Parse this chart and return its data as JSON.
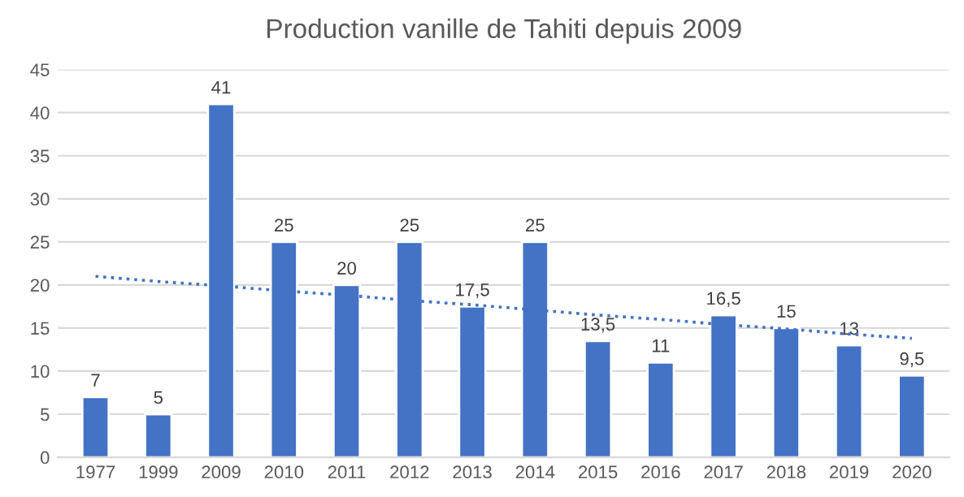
{
  "chart_data": {
    "type": "bar",
    "title": "Production vanille de Tahiti depuis 2009",
    "categories": [
      "1977",
      "1999",
      "2009",
      "2010",
      "2011",
      "2012",
      "2013",
      "2014",
      "2015",
      "2016",
      "2017",
      "2018",
      "2019",
      "2020"
    ],
    "series": [
      {
        "color": "#4472c4",
        "values": [
          7,
          5,
          41,
          25,
          20,
          25,
          17.5,
          25,
          13.5,
          11,
          16.5,
          15,
          13,
          9.5
        ],
        "value_labels": [
          "7",
          "5",
          "41",
          "25",
          "20",
          "25",
          "17,5",
          "25",
          "13,5",
          "11",
          "16,5",
          "15",
          "13",
          "9,5"
        ]
      },
      {
        "type": "line",
        "color": "#4472c4",
        "line_style": "dotted",
        "values": [
          21,
          20.4,
          19.9,
          19.3,
          18.8,
          18.2,
          17.7,
          17.1,
          16.5,
          16.0,
          15.4,
          14.9,
          14.3,
          13.8
        ]
      }
    ],
    "ylim": [
      0,
      45
    ],
    "yticks": [
      0,
      5,
      10,
      15,
      20,
      25,
      30,
      35,
      40,
      45
    ],
    "grid": "y",
    "legend": false
  }
}
